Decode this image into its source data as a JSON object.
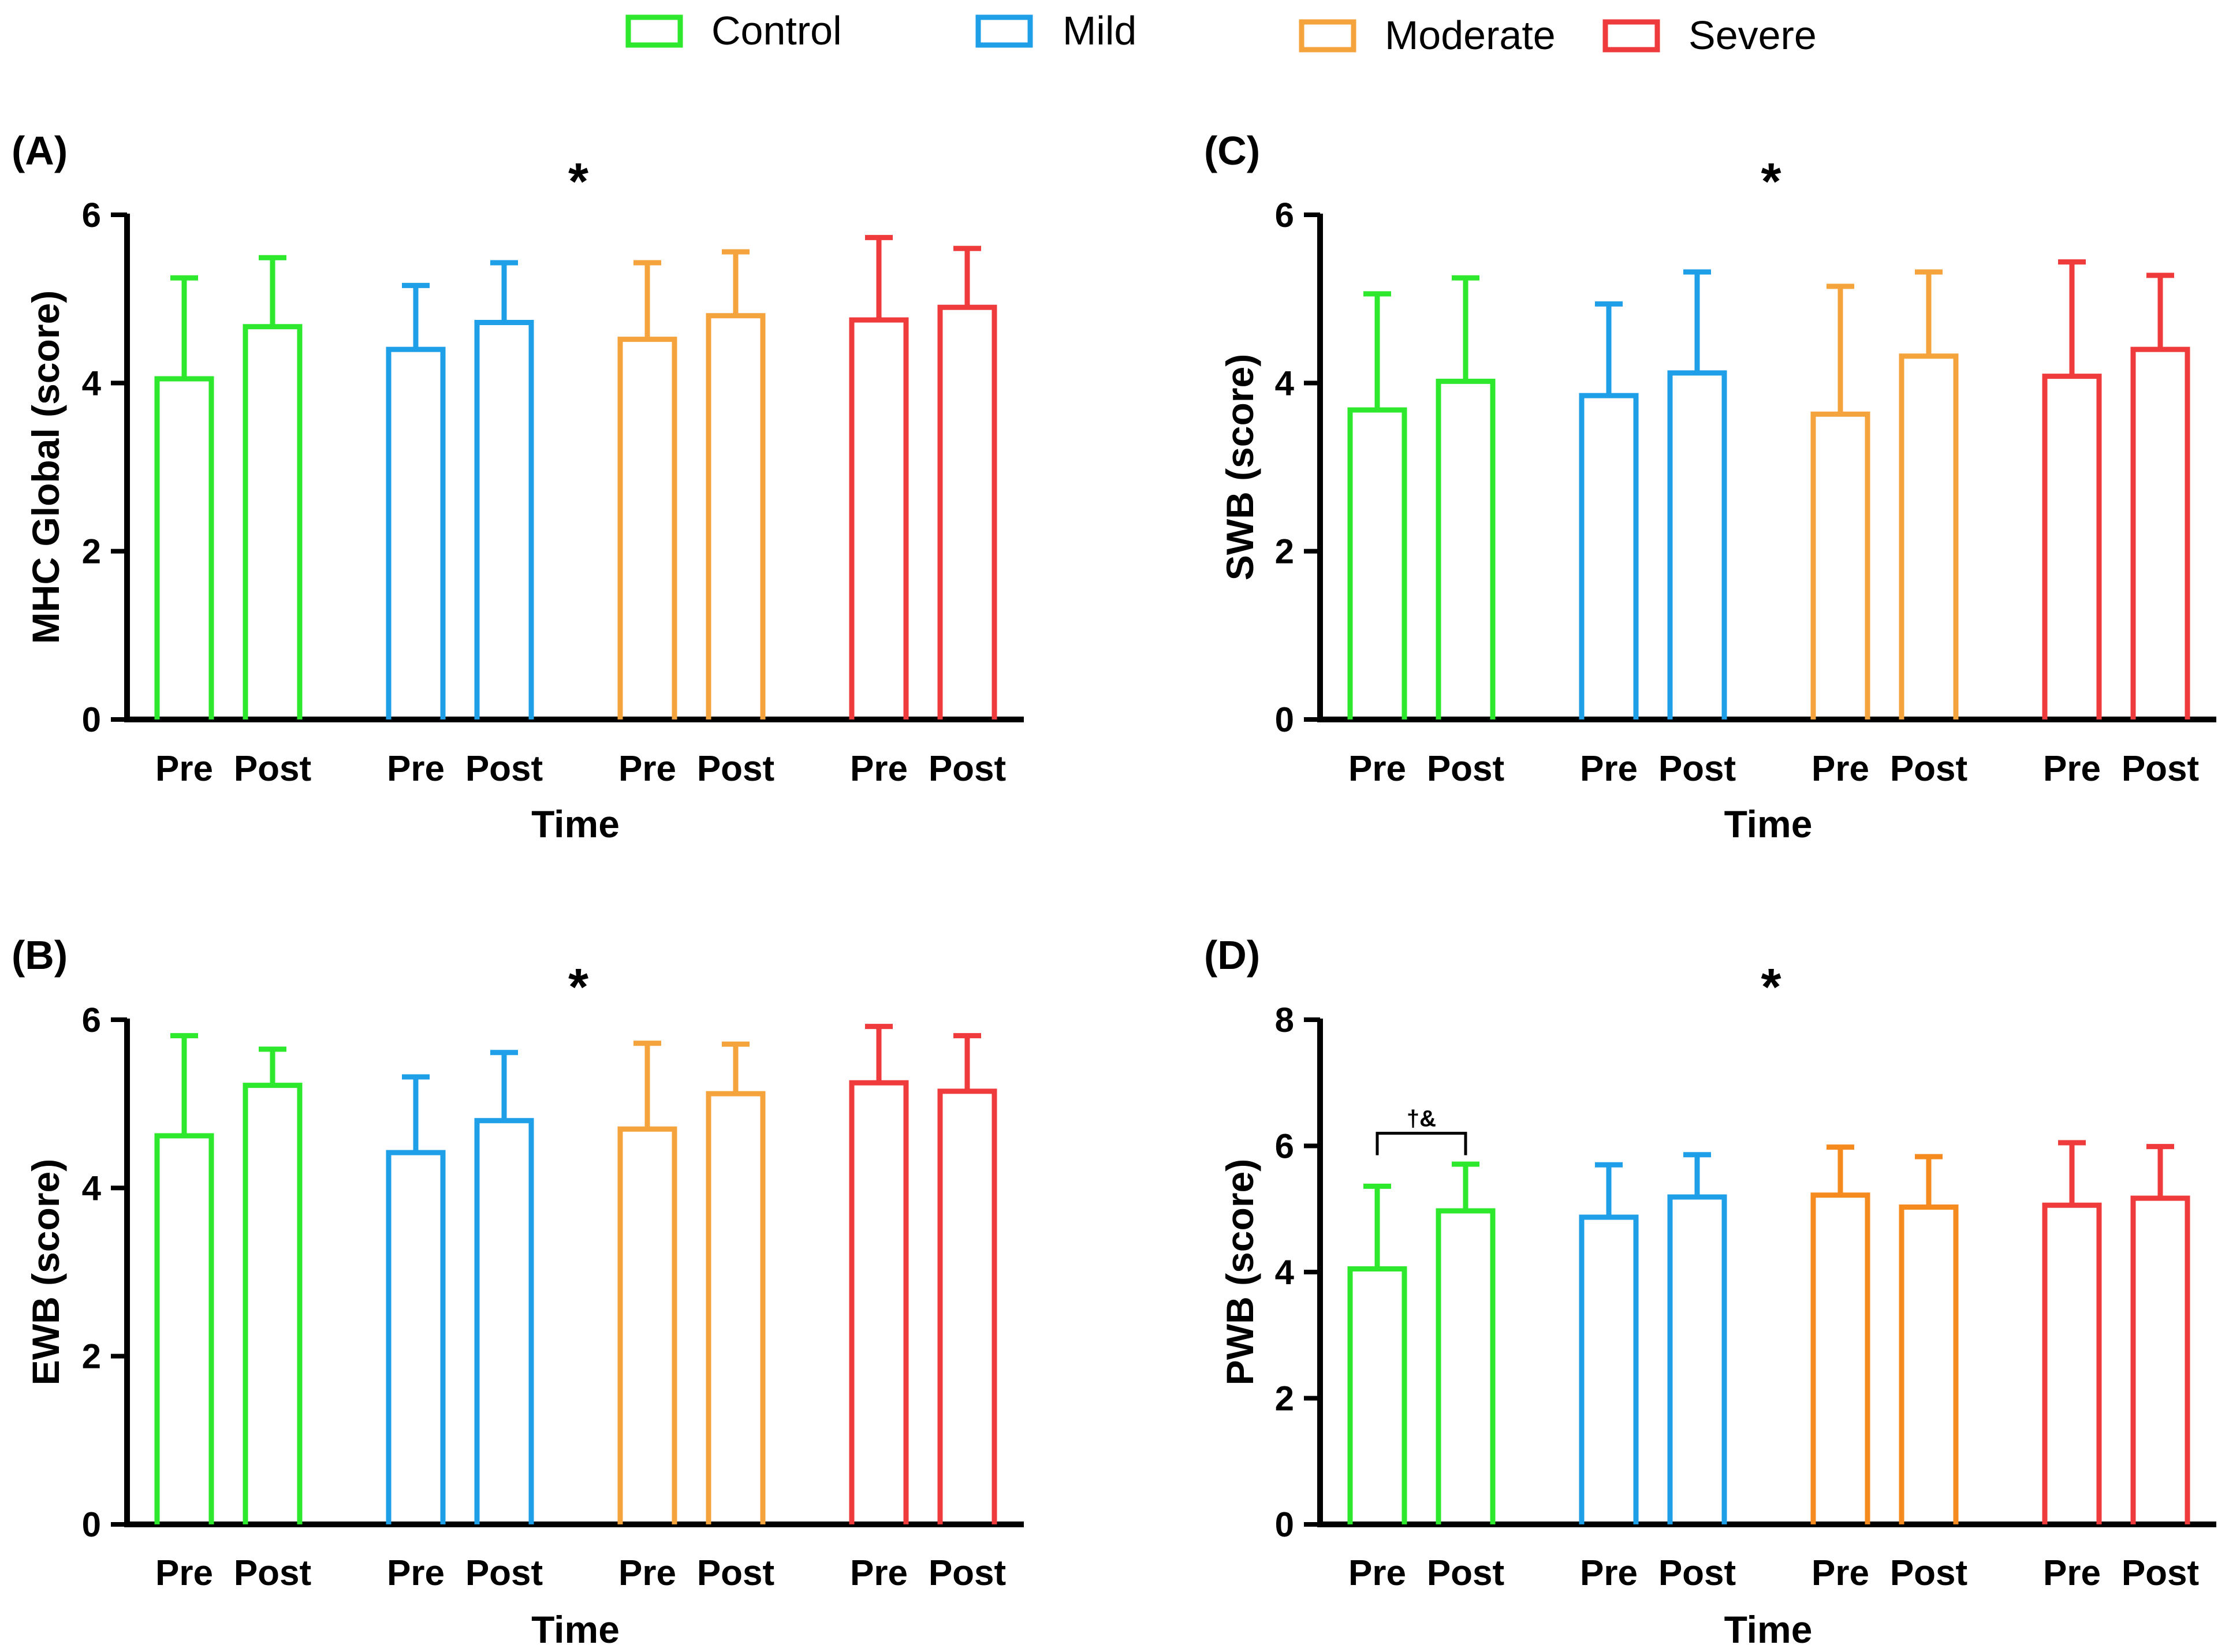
{
  "colors": {
    "Control": "#2ee82e",
    "Mild": "#1f9fe8",
    "Moderate": "#f5a33c",
    "Severe": "#ef3b3b",
    "ModerateD": "#f58a1f"
  },
  "legend": [
    {
      "name": "Control",
      "label": "Control"
    },
    {
      "name": "Mild",
      "label": "Mild"
    },
    {
      "name": "Moderate",
      "label": "Moderate"
    },
    {
      "name": "Severe",
      "label": "Severe"
    }
  ],
  "chart_data": [
    {
      "type": "bar",
      "panel": "(A)",
      "ylabel": "MHC Global (score)",
      "xlabel": "Time",
      "annotation": "*",
      "ylim": [
        0,
        6
      ],
      "yticks": [
        0,
        2,
        4,
        6
      ],
      "groups": [
        "Control",
        "Mild",
        "Moderate",
        "Severe"
      ],
      "categories": [
        "Pre",
        "Post"
      ],
      "series": [
        {
          "name": "Control",
          "values": [
            4.05,
            4.67
          ],
          "errors": [
            1.2,
            0.82
          ]
        },
        {
          "name": "Mild",
          "values": [
            4.4,
            4.72
          ],
          "errors": [
            0.76,
            0.71
          ]
        },
        {
          "name": "Moderate",
          "values": [
            4.52,
            4.8
          ],
          "errors": [
            0.91,
            0.76
          ]
        },
        {
          "name": "Severe",
          "values": [
            4.75,
            4.9
          ],
          "errors": [
            0.98,
            0.7
          ]
        }
      ]
    },
    {
      "type": "bar",
      "panel": "(B)",
      "ylabel": "EWB (score)",
      "xlabel": "Time",
      "annotation": "*",
      "ylim": [
        0,
        6
      ],
      "yticks": [
        0,
        2,
        4,
        6
      ],
      "groups": [
        "Control",
        "Mild",
        "Moderate",
        "Severe"
      ],
      "categories": [
        "Pre",
        "Post"
      ],
      "series": [
        {
          "name": "Control",
          "values": [
            4.62,
            5.22
          ],
          "errors": [
            1.19,
            0.43
          ]
        },
        {
          "name": "Mild",
          "values": [
            4.42,
            4.8
          ],
          "errors": [
            0.9,
            0.81
          ]
        },
        {
          "name": "Moderate",
          "values": [
            4.7,
            5.12
          ],
          "errors": [
            1.02,
            0.59
          ]
        },
        {
          "name": "Severe",
          "values": [
            5.25,
            5.15
          ],
          "errors": [
            0.67,
            0.66
          ]
        }
      ]
    },
    {
      "type": "bar",
      "panel": "(C)",
      "ylabel": "SWB (score)",
      "xlabel": "Time",
      "annotation": "*",
      "ylim": [
        0,
        6
      ],
      "yticks": [
        0,
        2,
        4,
        6
      ],
      "groups": [
        "Control",
        "Mild",
        "Moderate",
        "Severe"
      ],
      "categories": [
        "Pre",
        "Post"
      ],
      "series": [
        {
          "name": "Control",
          "values": [
            3.68,
            4.02
          ],
          "errors": [
            1.38,
            1.23
          ]
        },
        {
          "name": "Mild",
          "values": [
            3.85,
            4.12
          ],
          "errors": [
            1.09,
            1.2
          ]
        },
        {
          "name": "Moderate",
          "values": [
            3.63,
            4.32
          ],
          "errors": [
            1.52,
            1.0
          ]
        },
        {
          "name": "Severe",
          "values": [
            4.08,
            4.4
          ],
          "errors": [
            1.36,
            0.88
          ]
        }
      ]
    },
    {
      "type": "bar",
      "panel": "(D)",
      "ylabel": "PWB (score)",
      "xlabel": "Time",
      "annotation": "*",
      "significance": "†&",
      "ylim": [
        0,
        8
      ],
      "yticks": [
        0,
        2,
        4,
        6,
        8
      ],
      "groups": [
        "Control",
        "Mild",
        "Moderate",
        "Severe"
      ],
      "categories": [
        "Pre",
        "Post"
      ],
      "series": [
        {
          "name": "Control",
          "values": [
            4.05,
            4.97
          ],
          "errors": [
            1.31,
            0.74
          ]
        },
        {
          "name": "Mild",
          "values": [
            4.87,
            5.19
          ],
          "errors": [
            0.83,
            0.67
          ]
        },
        {
          "name": "Moderate",
          "values": [
            5.22,
            5.03
          ],
          "errors": [
            0.76,
            0.8
          ]
        },
        {
          "name": "Severe",
          "values": [
            5.06,
            5.17
          ],
          "errors": [
            0.99,
            0.82
          ]
        }
      ]
    }
  ]
}
